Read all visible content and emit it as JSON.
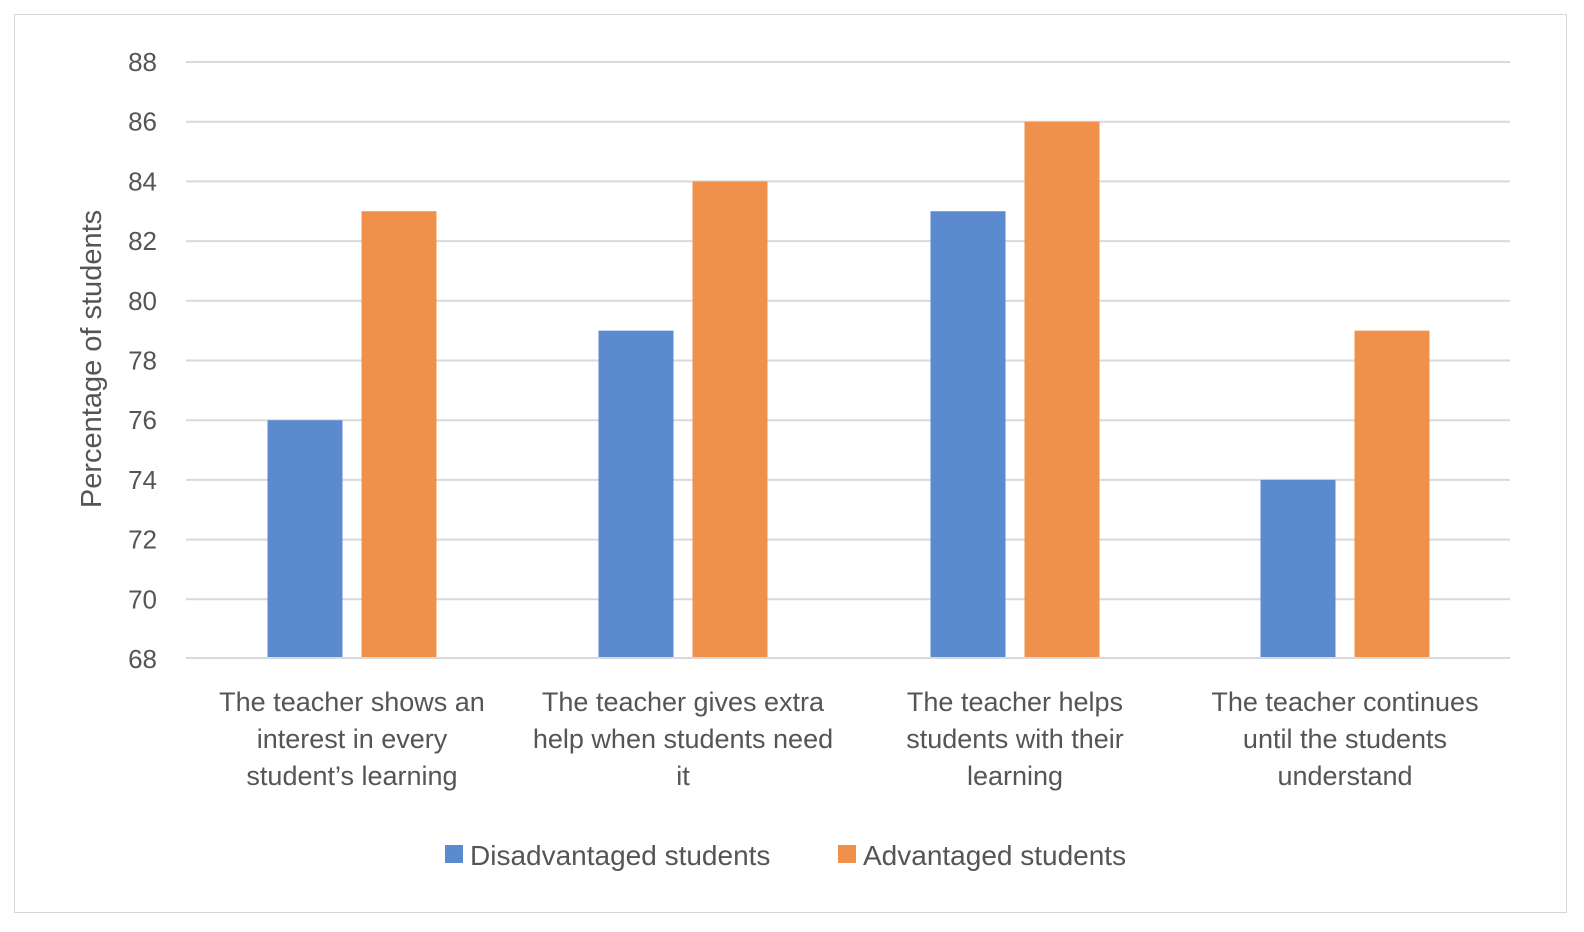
{
  "chart_data": {
    "type": "bar",
    "title": "",
    "xlabel": "",
    "ylabel": "Percentage of students",
    "ylim": [
      68,
      88
    ],
    "yticks": [
      68,
      70,
      72,
      74,
      76,
      78,
      80,
      82,
      84,
      86,
      88
    ],
    "grid": true,
    "legend_position": "bottom",
    "categories": [
      [
        "The teacher shows an",
        "interest in every",
        "student’s learning"
      ],
      [
        "The teacher gives extra",
        "help when students need",
        "it"
      ],
      [
        "The teacher helps",
        "students with their",
        "learning"
      ],
      [
        "The teacher continues",
        "until the students",
        "understand"
      ]
    ],
    "series": [
      {
        "name": "Disadvantaged students",
        "color": "#5b8bce",
        "values": [
          76,
          79,
          83,
          74
        ]
      },
      {
        "name": "Advantaged students",
        "color": "#ef914a",
        "values": [
          83,
          84,
          86,
          79
        ]
      }
    ],
    "gridline_color": "#d9d9d9",
    "text_color": "#555555"
  }
}
